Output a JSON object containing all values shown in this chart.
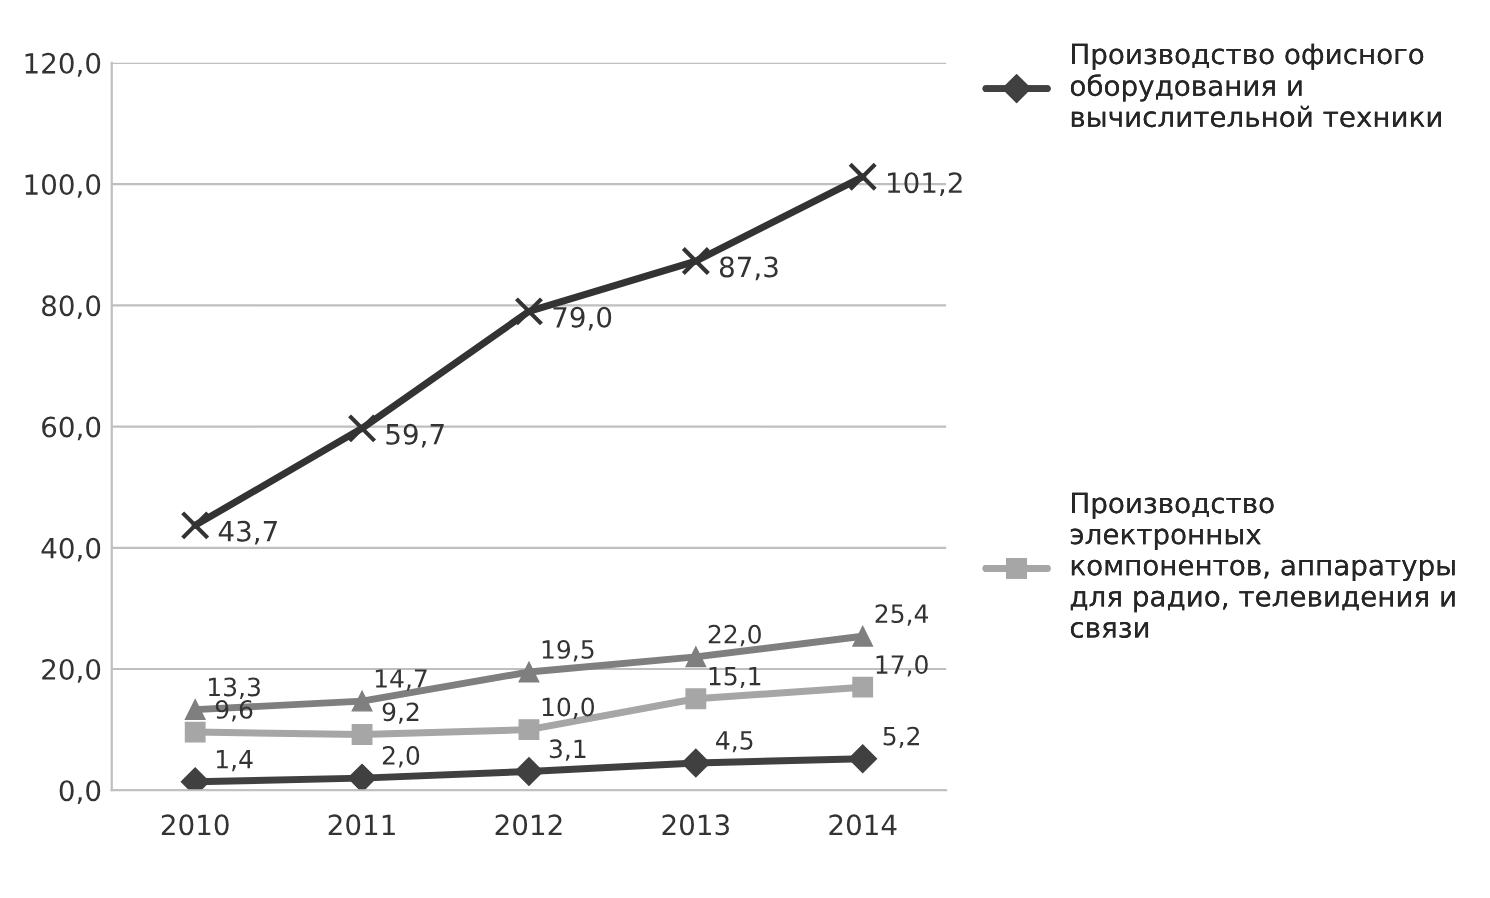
{
  "chart_data": {
    "type": "line",
    "categories": [
      "2010",
      "2011",
      "2012",
      "2013",
      "2014"
    ],
    "series": [
      {
        "color": "#333333",
        "marker": "cross",
        "values": [
          43.7,
          59.7,
          79.0,
          87.3,
          101.2
        ],
        "value_labels": [
          "43,7",
          "59,7",
          "79,0",
          "87,3",
          "101,2"
        ]
      },
      {
        "color": "#7f7f7f",
        "marker": "triangle",
        "values": [
          13.3,
          14.7,
          19.5,
          22.0,
          25.4
        ],
        "value_labels": [
          "13,3",
          "14,7",
          "19,5",
          "22,0",
          "25,4"
        ]
      },
      {
        "name": "Производство\nэлектронных\nкомпонентов, аппаратуры\nдля радио, телевидения и\nсвязи",
        "color": "#a6a6a6",
        "marker": "square",
        "values": [
          9.6,
          9.2,
          10.0,
          15.1,
          17.0
        ],
        "value_labels": [
          "9,6",
          "9,2",
          "10,0",
          "15,1",
          "17,0"
        ]
      },
      {
        "name": "Производство офисного\nоборудования и\nвычислительной техники",
        "color": "#404040",
        "marker": "diamond",
        "values": [
          1.4,
          2.0,
          3.1,
          4.5,
          5.2
        ],
        "value_labels": [
          "1,4",
          "2,0",
          "3,1",
          "4,5",
          "5,2"
        ]
      }
    ],
    "ylim": [
      0,
      120
    ],
    "yticks": [
      {
        "value": 0,
        "label": "0,0"
      },
      {
        "value": 20,
        "label": "20,0"
      },
      {
        "value": 40,
        "label": "40,0"
      },
      {
        "value": 60,
        "label": "60,0"
      },
      {
        "value": 80,
        "label": "80,0"
      },
      {
        "value": 100,
        "label": "100,0"
      },
      {
        "value": 120,
        "label": "120,0"
      }
    ],
    "grid": "y",
    "legend": "right",
    "line_style": "solid"
  }
}
